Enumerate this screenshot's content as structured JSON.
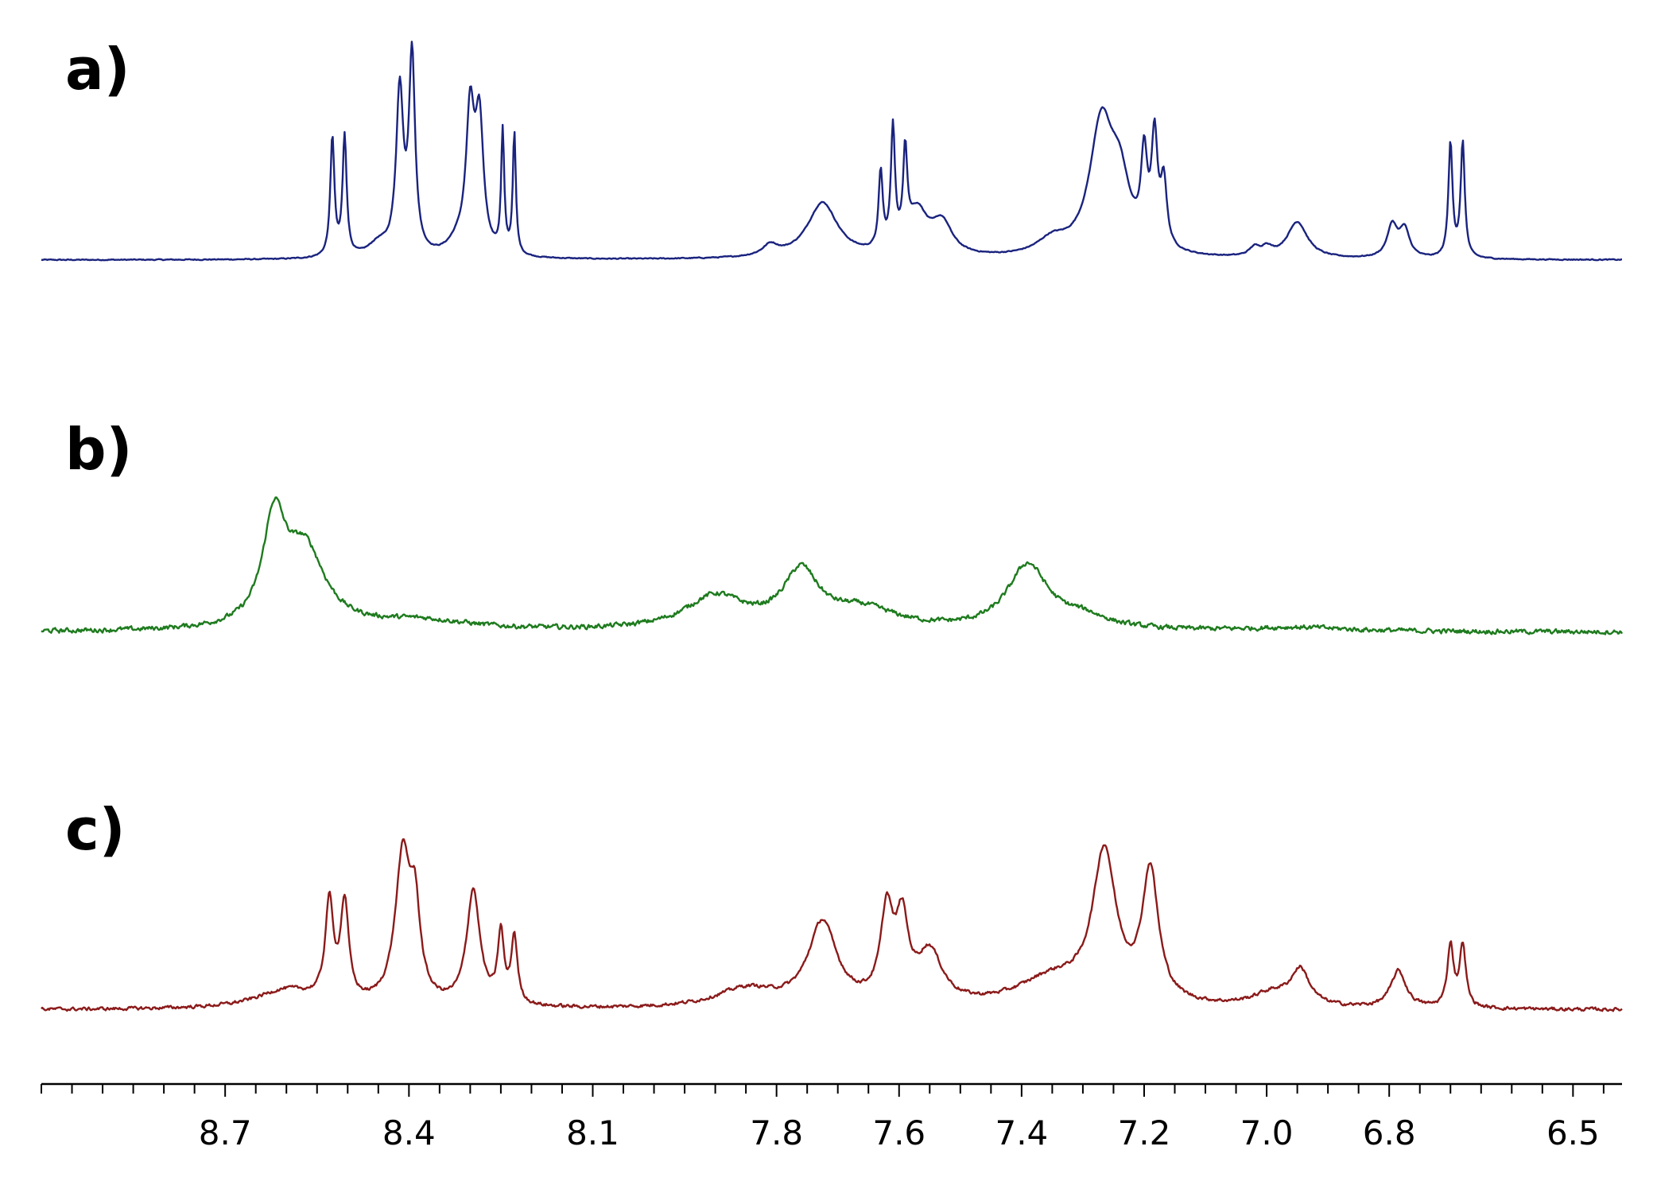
{
  "chart_data": {
    "type": "line",
    "title": "",
    "xlabel": "",
    "ylabel": "",
    "x_axis": {
      "xlim": [
        9.0,
        6.42
      ],
      "reversed": true,
      "major_ticks": [
        8.7,
        8.4,
        8.1,
        7.8,
        7.6,
        7.4,
        7.2,
        7.0,
        6.8,
        6.5
      ],
      "tick_labels": [
        "8.7",
        "8.4",
        "8.1",
        "7.8",
        "7.6",
        "7.4",
        "7.2",
        "7.0",
        "6.8",
        "6.5"
      ],
      "minor_tick_step": 0.05
    },
    "grid": false,
    "legend": "none",
    "panels": [
      {
        "label": "a)",
        "color": "#1a237e",
        "noise": 0.004,
        "baseline": 0.0,
        "peaks": [
          {
            "x": 8.525,
            "h": 0.56,
            "w": 0.004
          },
          {
            "x": 8.505,
            "h": 0.56,
            "w": 0.004
          },
          {
            "x": 8.45,
            "h": 0.06,
            "w": 0.02
          },
          {
            "x": 8.415,
            "h": 0.76,
            "w": 0.007
          },
          {
            "x": 8.395,
            "h": 0.92,
            "w": 0.006
          },
          {
            "x": 8.32,
            "h": 0.06,
            "w": 0.02
          },
          {
            "x": 8.3,
            "h": 0.64,
            "w": 0.008
          },
          {
            "x": 8.285,
            "h": 0.6,
            "w": 0.008
          },
          {
            "x": 8.247,
            "h": 0.57,
            "w": 0.003
          },
          {
            "x": 8.228,
            "h": 0.57,
            "w": 0.003
          },
          {
            "x": 7.81,
            "h": 0.05,
            "w": 0.015
          },
          {
            "x": 7.725,
            "h": 0.26,
            "w": 0.03
          },
          {
            "x": 7.63,
            "h": 0.36,
            "w": 0.004
          },
          {
            "x": 7.61,
            "h": 0.56,
            "w": 0.004
          },
          {
            "x": 7.59,
            "h": 0.42,
            "w": 0.004
          },
          {
            "x": 7.57,
            "h": 0.2,
            "w": 0.02
          },
          {
            "x": 7.53,
            "h": 0.15,
            "w": 0.02
          },
          {
            "x": 7.35,
            "h": 0.07,
            "w": 0.03
          },
          {
            "x": 7.27,
            "h": 0.6,
            "w": 0.023
          },
          {
            "x": 7.24,
            "h": 0.3,
            "w": 0.02
          },
          {
            "x": 7.2,
            "h": 0.4,
            "w": 0.006
          },
          {
            "x": 7.183,
            "h": 0.5,
            "w": 0.006
          },
          {
            "x": 7.168,
            "h": 0.3,
            "w": 0.006
          },
          {
            "x": 7.02,
            "h": 0.04,
            "w": 0.01
          },
          {
            "x": 7.0,
            "h": 0.04,
            "w": 0.01
          },
          {
            "x": 6.95,
            "h": 0.17,
            "w": 0.02
          },
          {
            "x": 6.795,
            "h": 0.15,
            "w": 0.01
          },
          {
            "x": 6.775,
            "h": 0.13,
            "w": 0.01
          },
          {
            "x": 6.7,
            "h": 0.54,
            "w": 0.004
          },
          {
            "x": 6.68,
            "h": 0.54,
            "w": 0.004
          }
        ]
      },
      {
        "label": "b)",
        "color": "#1e7b1e",
        "noise": 0.02,
        "baseline": 0.0,
        "peaks": [
          {
            "x": 8.62,
            "h": 0.52,
            "w": 0.022
          },
          {
            "x": 8.57,
            "h": 0.4,
            "w": 0.04
          },
          {
            "x": 8.38,
            "h": 0.05,
            "w": 0.1
          },
          {
            "x": 7.9,
            "h": 0.17,
            "w": 0.06
          },
          {
            "x": 7.76,
            "h": 0.28,
            "w": 0.035
          },
          {
            "x": 7.66,
            "h": 0.1,
            "w": 0.07
          },
          {
            "x": 7.39,
            "h": 0.33,
            "w": 0.04
          },
          {
            "x": 7.3,
            "h": 0.06,
            "w": 0.05
          },
          {
            "x": 6.95,
            "h": 0.02,
            "w": 0.1
          }
        ]
      },
      {
        "label": "c)",
        "color": "#8b1a1a",
        "noise": 0.012,
        "baseline": 0.0,
        "peaks": [
          {
            "x": 8.53,
            "h": 0.42,
            "w": 0.008
          },
          {
            "x": 8.505,
            "h": 0.42,
            "w": 0.008
          },
          {
            "x": 8.6,
            "h": 0.08,
            "w": 0.06
          },
          {
            "x": 8.41,
            "h": 0.64,
            "w": 0.015
          },
          {
            "x": 8.39,
            "h": 0.35,
            "w": 0.01
          },
          {
            "x": 8.295,
            "h": 0.5,
            "w": 0.013
          },
          {
            "x": 8.25,
            "h": 0.3,
            "w": 0.006
          },
          {
            "x": 8.228,
            "h": 0.29,
            "w": 0.006
          },
          {
            "x": 7.85,
            "h": 0.08,
            "w": 0.06
          },
          {
            "x": 7.725,
            "h": 0.36,
            "w": 0.028
          },
          {
            "x": 7.62,
            "h": 0.38,
            "w": 0.012
          },
          {
            "x": 7.595,
            "h": 0.33,
            "w": 0.012
          },
          {
            "x": 7.55,
            "h": 0.22,
            "w": 0.025
          },
          {
            "x": 7.35,
            "h": 0.12,
            "w": 0.07
          },
          {
            "x": 7.265,
            "h": 0.64,
            "w": 0.023
          },
          {
            "x": 7.19,
            "h": 0.56,
            "w": 0.016
          },
          {
            "x": 6.99,
            "h": 0.06,
            "w": 0.04
          },
          {
            "x": 6.945,
            "h": 0.15,
            "w": 0.018
          },
          {
            "x": 6.785,
            "h": 0.16,
            "w": 0.015
          },
          {
            "x": 6.7,
            "h": 0.27,
            "w": 0.006
          },
          {
            "x": 6.68,
            "h": 0.27,
            "w": 0.006
          }
        ]
      }
    ]
  }
}
